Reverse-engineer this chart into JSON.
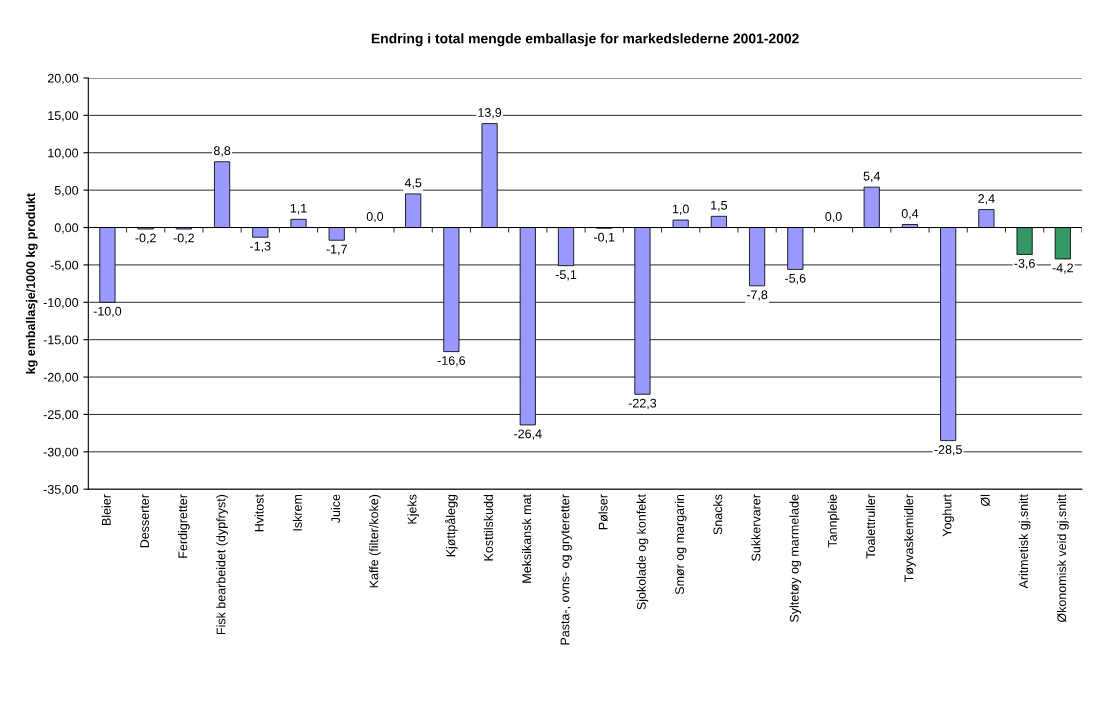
{
  "chart_data": {
    "type": "bar",
    "title": "Endring i total mengde emballasje for markedslederne 2001-2002",
    "ylabel": "kg emballasje/1000 kg produkt",
    "categories": [
      "Bleier",
      "Desserter",
      "Ferdigretter",
      "Fisk bearbeidet (dypfryst)",
      "Hvitost",
      "Iskrem",
      "Juice",
      "Kaffe (filter/koke)",
      "Kjeks",
      "Kjøttpålegg",
      "Kosttilskudd",
      "Meksikansk mat",
      "Pasta-, ovns- og gryteretter",
      "Pølser",
      "Sjokolade og konfekt",
      "Smør og margarin",
      "Snacks",
      "Sukkervarer",
      "Syltetøy og marmelade",
      "Tannpleie",
      "Toalettruller",
      "Tøyvaskemidler",
      "Yoghurt",
      "Øl",
      "Aritmetisk gj.snitt",
      "Økonomisk veid gj.snitt"
    ],
    "values": [
      -10.0,
      -0.2,
      -0.2,
      8.8,
      -1.3,
      1.1,
      -1.7,
      0.0,
      4.5,
      -16.6,
      13.9,
      -26.4,
      -5.1,
      -0.1,
      -22.3,
      1.0,
      1.5,
      -7.8,
      -5.6,
      0.0,
      5.4,
      0.4,
      -28.5,
      2.4,
      -3.6,
      -4.2
    ],
    "value_labels": [
      "-10,0",
      "-0,2",
      "-0,2",
      "8,8",
      "-1,3",
      "1,1",
      "-1,7",
      "0,0",
      "4,5",
      "-16,6",
      "13,9",
      "-26,4",
      "-5,1",
      "-0,1",
      "-22,3",
      "1,0",
      "1,5",
      "-7,8",
      "-5,6",
      "0,0",
      "5,4",
      "0,4",
      "-28,5",
      "2,4",
      "-3,6",
      "-4,2"
    ],
    "colors": [
      "#9999ff",
      "#9999ff",
      "#9999ff",
      "#9999ff",
      "#9999ff",
      "#9999ff",
      "#9999ff",
      "#9999ff",
      "#9999ff",
      "#9999ff",
      "#9999ff",
      "#9999ff",
      "#9999ff",
      "#9999ff",
      "#9999ff",
      "#9999ff",
      "#9999ff",
      "#9999ff",
      "#9999ff",
      "#9999ff",
      "#9999ff",
      "#9999ff",
      "#9999ff",
      "#9999ff",
      "#339966",
      "#339966"
    ],
    "ylim": [
      -35,
      20
    ],
    "yticks": [
      {
        "value": -35,
        "label": "-35,00"
      },
      {
        "value": -30,
        "label": "-30,00"
      },
      {
        "value": -25,
        "label": "-25,00"
      },
      {
        "value": -20,
        "label": "-20,00"
      },
      {
        "value": -15,
        "label": "-15,00"
      },
      {
        "value": -10,
        "label": "-10,00"
      },
      {
        "value": -5,
        "label": "-5,00"
      },
      {
        "value": 0,
        "label": "0,00"
      },
      {
        "value": 5,
        "label": "5,00"
      },
      {
        "value": 10,
        "label": "10,00"
      },
      {
        "value": 15,
        "label": "15,00"
      },
      {
        "value": 20,
        "label": "20,00"
      }
    ],
    "grid": "y",
    "legend": false
  }
}
